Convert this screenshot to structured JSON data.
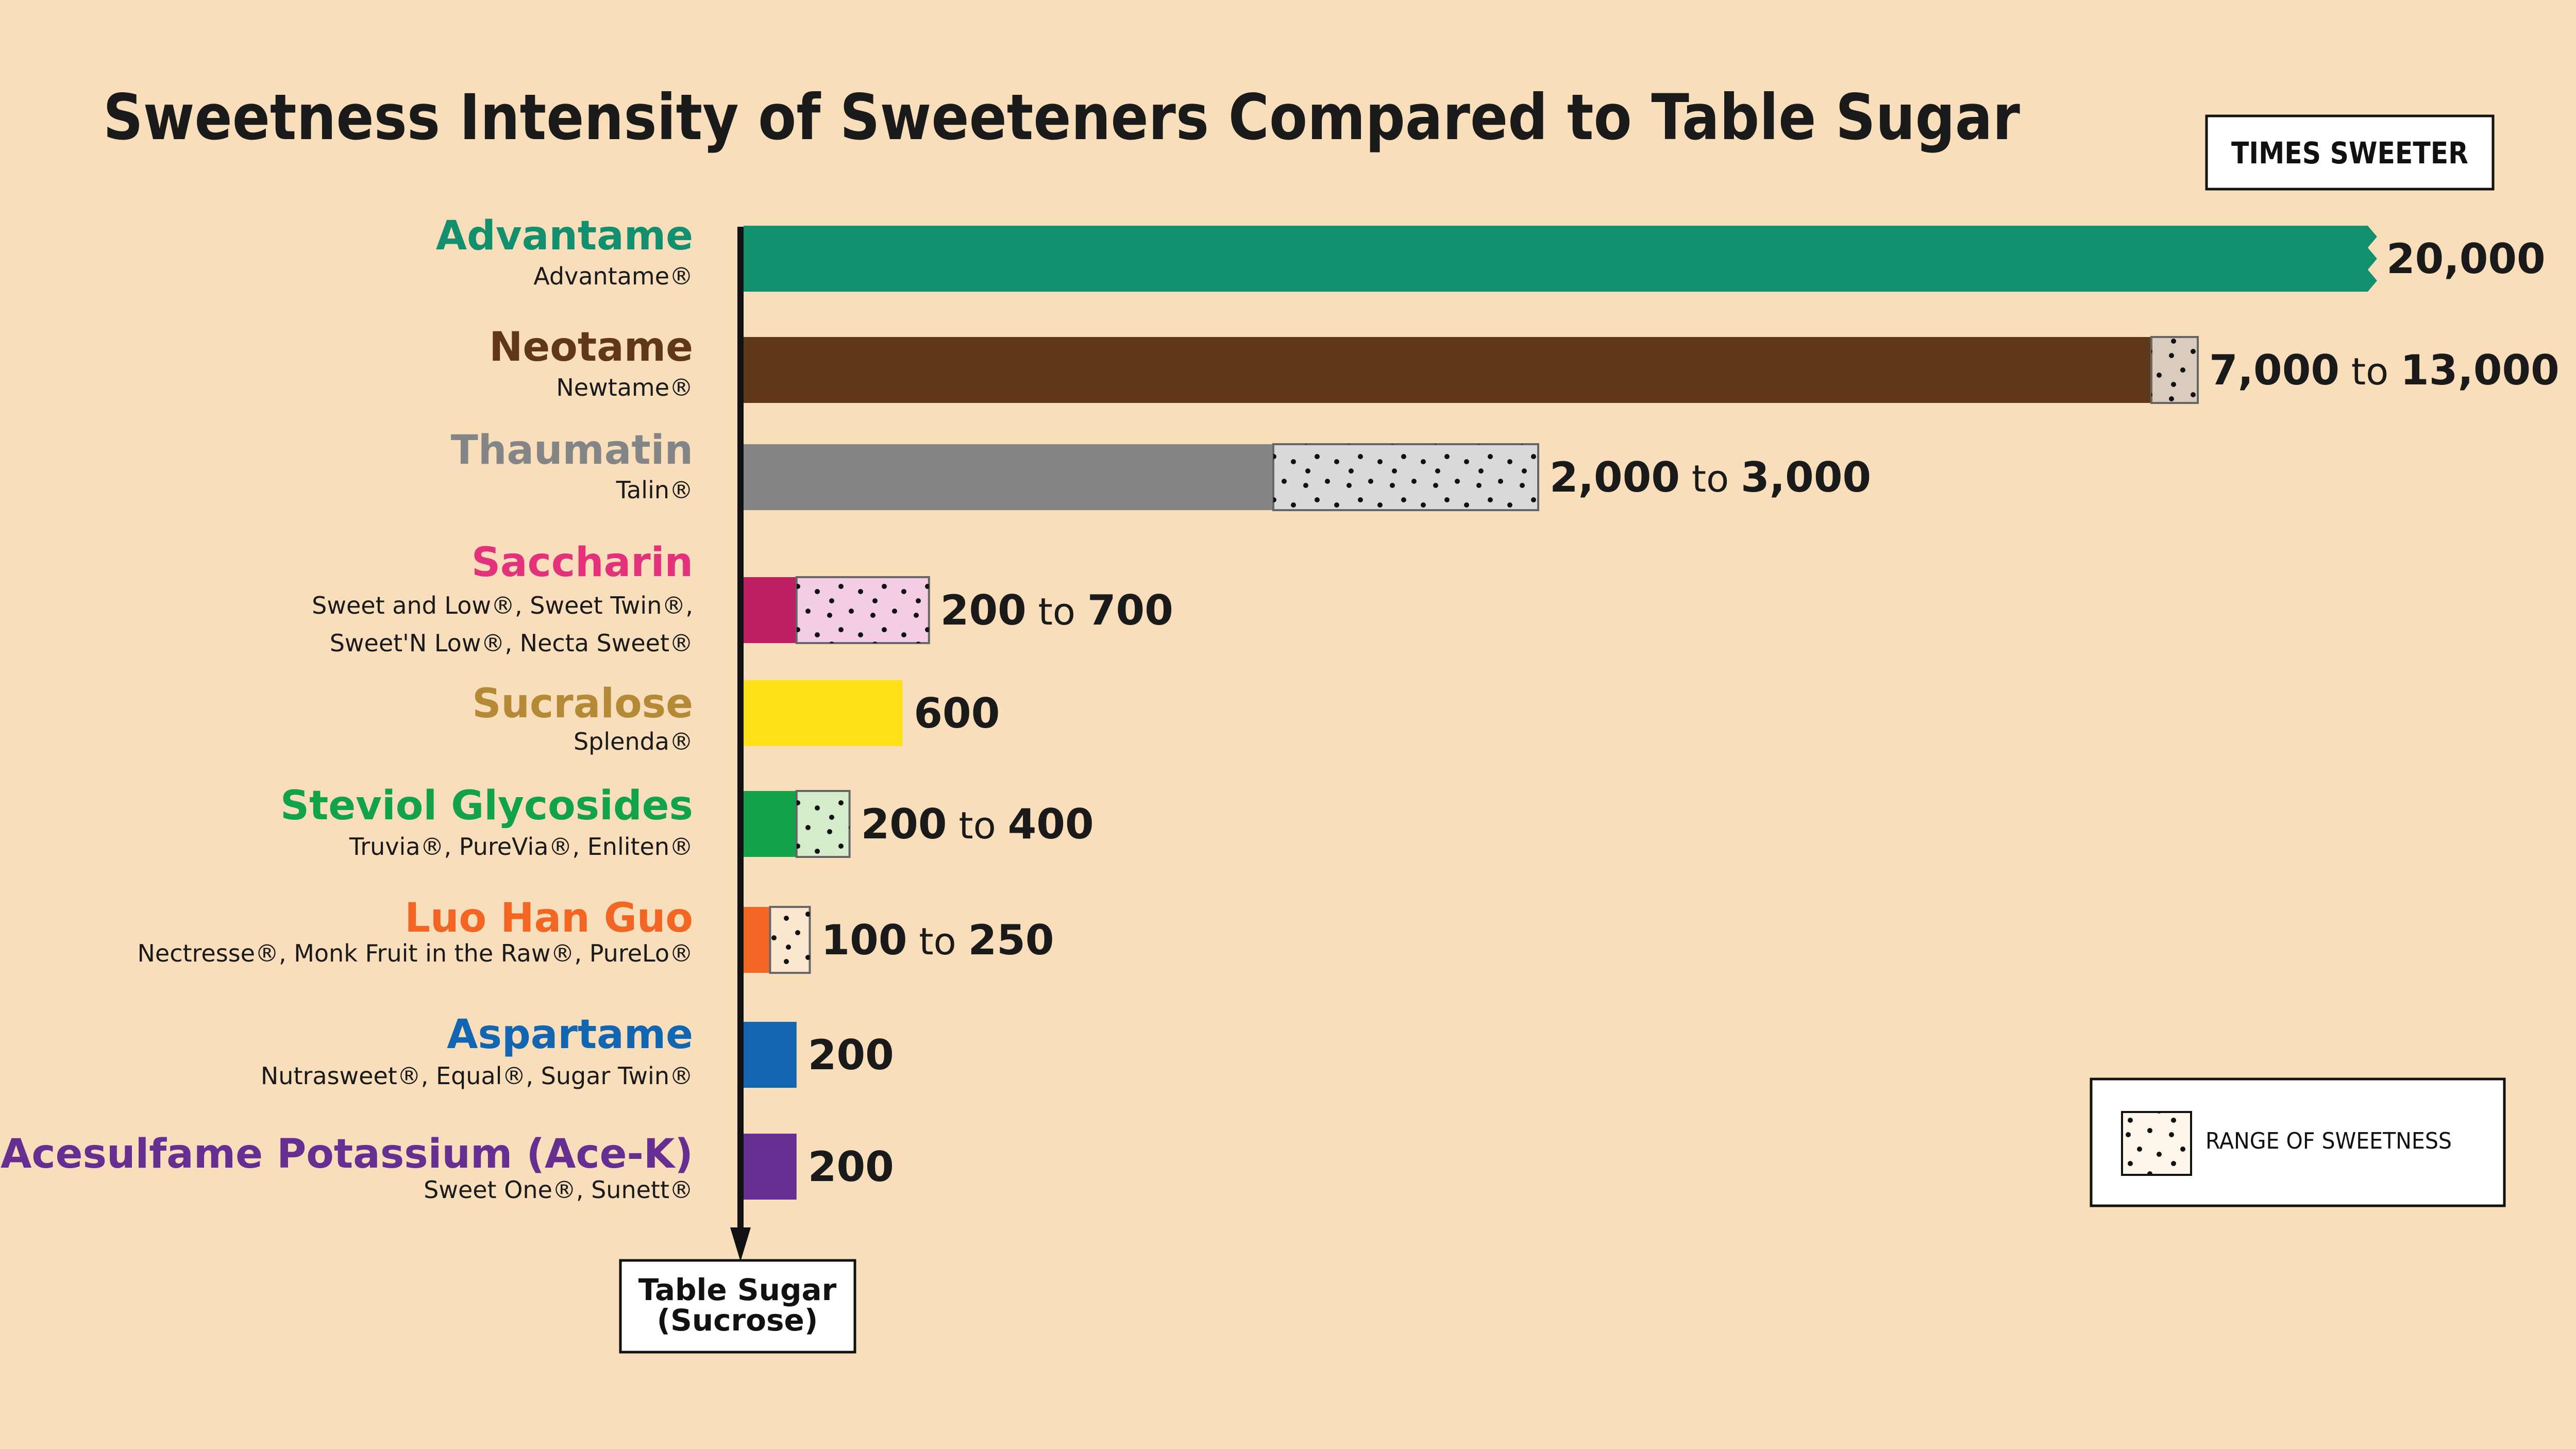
{
  "chart_data": {
    "type": "bar",
    "title": "Sweetness Intensity of Sweeteners Compared to Table Sugar",
    "unit_label": "TIMES SWEETER",
    "baseline_label": [
      "Table Sugar",
      "(Sucrose)"
    ],
    "legend": {
      "label": "RANGE OF SWEETNESS",
      "placement": "bottom-right"
    },
    "connector": "to",
    "bar_colors_note": "",
    "items": [
      {
        "name": "Advantame",
        "brands": [
          "Advantame®"
        ],
        "min": 20000,
        "max": 20000,
        "label_min": "20,000",
        "label_max": "",
        "color": "#12906e",
        "name_color": "#12906e",
        "range_fill": "",
        "broken_axis": true
      },
      {
        "name": "Neotame",
        "brands": [
          "Newtame®"
        ],
        "min": 7000,
        "max": 13000,
        "label_min": "7,000",
        "label_max": "13,000",
        "color": "#603818",
        "name_color": "#603818",
        "range_fill": "#d9ccbd",
        "broken_axis": true
      },
      {
        "name": "Thaumatin",
        "brands": [
          "Talin®"
        ],
        "min": 2000,
        "max": 3000,
        "label_min": "2,000",
        "label_max": "3,000",
        "color": "#838587",
        "name_color": "#838587",
        "range_fill": "#d9d9d9",
        "broken_axis": false
      },
      {
        "name": "Saccharin",
        "brands": [
          "Sweet and Low®, Sweet Twin®,",
          "Sweet'N Low®, Necta Sweet®"
        ],
        "min": 200,
        "max": 700,
        "label_min": "200",
        "label_max": "700",
        "color": "#bf1e62",
        "name_color": "#e4317b",
        "range_fill": "#f3cde3",
        "broken_axis": false
      },
      {
        "name": "Sucralose",
        "brands": [
          "Splenda®"
        ],
        "min": 600,
        "max": 600,
        "label_min": "600",
        "label_max": "",
        "color": "#ffe016",
        "name_color": "#b58a36",
        "range_fill": "",
        "broken_axis": false
      },
      {
        "name": "Steviol Glycosides",
        "brands": [
          "Truvia®, PureVia®, Enliten®"
        ],
        "min": 200,
        "max": 400,
        "label_min": "200",
        "label_max": "400",
        "color": "#12a24a",
        "name_color": "#12a24a",
        "range_fill": "#d5eccb",
        "broken_axis": false
      },
      {
        "name": "Luo Han Guo",
        "brands": [
          "Nectresse®, Monk Fruit in the Raw®, PureLo®"
        ],
        "min": 100,
        "max": 250,
        "label_min": "100",
        "label_max": "250",
        "color": "#f26522",
        "name_color": "#f26522",
        "range_fill": "#fbe6cf",
        "broken_axis": false
      },
      {
        "name": "Aspartame",
        "brands": [
          "Nutrasweet®, Equal®, Sugar Twin®"
        ],
        "min": 200,
        "max": 200,
        "label_min": "200",
        "label_max": "",
        "color": "#1265b1",
        "name_color": "#1265b1",
        "range_fill": "",
        "broken_axis": false
      },
      {
        "name": "Acesulfame Potassium (Ace-K)",
        "brands": [
          "Sweet One®, Sunett®"
        ],
        "min": 200,
        "max": 200,
        "label_min": "200",
        "label_max": "",
        "color": "#662e91",
        "name_color": "#662e91",
        "range_fill": "",
        "broken_axis": false
      }
    ]
  }
}
